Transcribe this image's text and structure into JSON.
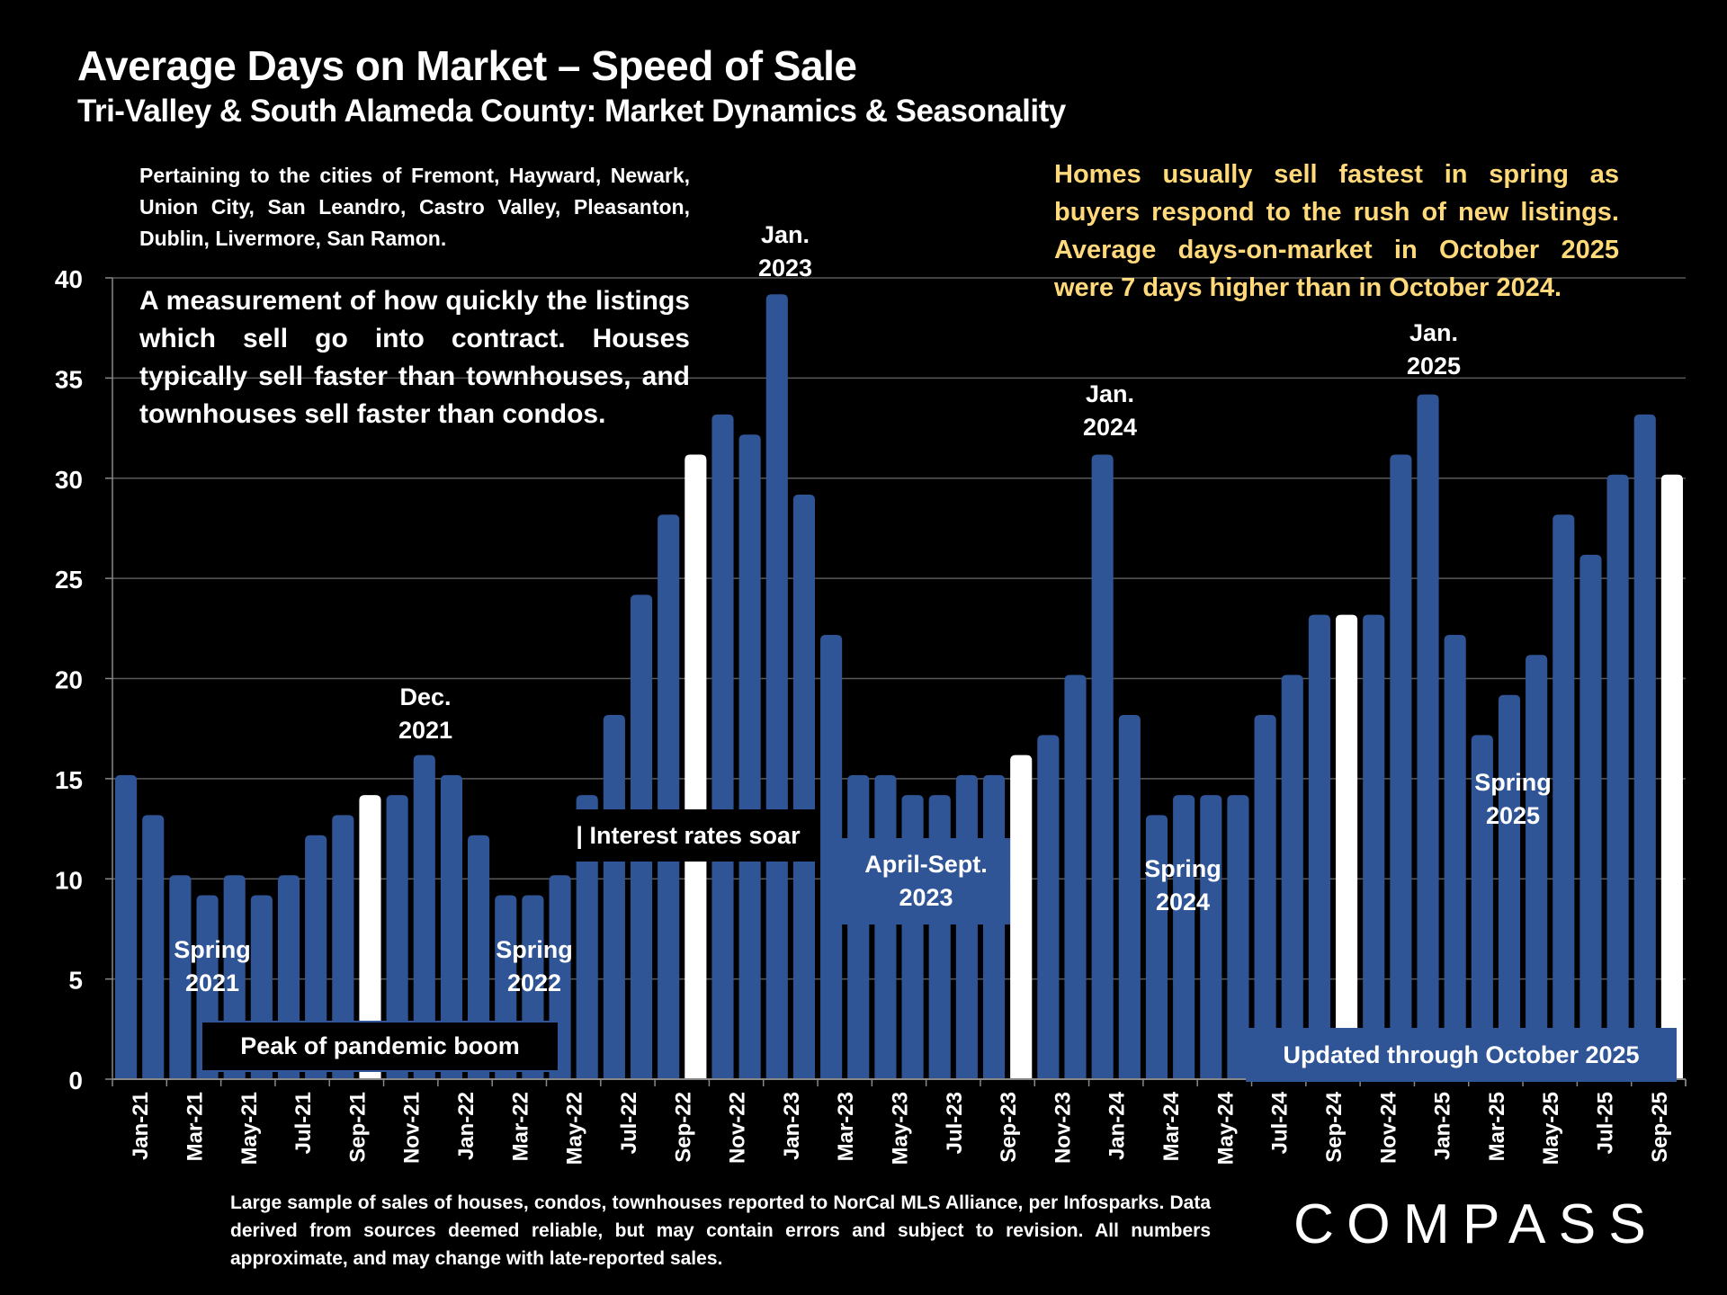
{
  "header": {
    "title": "Average Days on Market – Speed of Sale",
    "subtitle": "Tri-Valley & South Alameda County: Market Dynamics & Seasonality"
  },
  "notes": {
    "cities": "Pertaining to the cities of Fremont, Hayward, Newark, Union City, San Leandro, Castro Valley, Pleasanton, Dublin, Livermore, San Ramon.",
    "measurement": "A measurement of how quickly the listings which sell go into contract. Houses typically sell faster than townhouses, and townhouses sell faster than condos.",
    "insight": "Homes usually sell fastest in spring as buyers respond to the rush of new listings. Average days-on-market in October 2025 were 7 days higher than in October 2024."
  },
  "annotations": {
    "dec2021": [
      "Dec.",
      "2021"
    ],
    "jan2023": [
      "Jan.",
      "2023"
    ],
    "jan2024": [
      "Jan.",
      "2024"
    ],
    "jan2025": [
      "Jan.",
      "2025"
    ],
    "spring2021": [
      "Spring",
      "2021"
    ],
    "spring2022": [
      "Spring",
      "2022"
    ],
    "spring2024": [
      "Spring",
      "2024"
    ],
    "spring2025": [
      "Spring",
      "2025"
    ],
    "peak_box": "Peak of pandemic boom",
    "rates_box": "| Interest rates soar",
    "aprsep_box": [
      "April-Sept.",
      "2023"
    ],
    "updated_box": "Updated through October 2025"
  },
  "footer": {
    "source": "Large sample of sales of houses, condos, townhouses reported to NorCal MLS Alliance, per Infosparks. Data derived from sources deemed reliable, but may contain errors and subject to revision. All numbers approximate, and may change with late-reported sales.",
    "logo": "COMPASS"
  },
  "colors": {
    "bar": "#2F5597",
    "highlight_bar": "#FFFFFF",
    "insight_text": "#FFD97A",
    "grid": "#595959",
    "background": "#000000"
  },
  "chart_data": {
    "type": "bar",
    "title": "Average Days on Market – Speed of Sale",
    "xlabel": "",
    "ylabel": "",
    "ylim": [
      0,
      40
    ],
    "yticks": [
      0,
      5,
      10,
      15,
      20,
      25,
      30,
      35,
      40
    ],
    "grid": true,
    "categories": [
      "Jan-21",
      "Feb-21",
      "Mar-21",
      "Apr-21",
      "May-21",
      "Jun-21",
      "Jul-21",
      "Aug-21",
      "Sep-21",
      "Oct-21",
      "Nov-21",
      "Dec-21",
      "Jan-22",
      "Feb-22",
      "Mar-22",
      "Apr-22",
      "May-22",
      "Jun-22",
      "Jul-22",
      "Aug-22",
      "Sep-22",
      "Oct-22",
      "Nov-22",
      "Dec-22",
      "Jan-23",
      "Feb-23",
      "Mar-23",
      "Apr-23",
      "May-23",
      "Jun-23",
      "Jul-23",
      "Aug-23",
      "Sep-23",
      "Oct-23",
      "Nov-23",
      "Dec-23",
      "Jan-24",
      "Feb-24",
      "Mar-24",
      "Apr-24",
      "May-24",
      "Jun-24",
      "Jul-24",
      "Aug-24",
      "Sep-24",
      "Oct-24",
      "Nov-24",
      "Dec-24",
      "Jan-25",
      "Feb-25",
      "Mar-25",
      "Apr-25",
      "May-25",
      "Jun-25",
      "Jul-25",
      "Aug-25",
      "Sep-25",
      "Oct-25"
    ],
    "values": [
      15,
      13,
      10,
      9,
      10,
      9,
      10,
      12,
      13,
      14,
      14,
      16,
      15,
      12,
      9,
      9,
      10,
      14,
      18,
      24,
      28,
      31,
      33,
      32,
      39,
      29,
      22,
      15,
      15,
      14,
      14,
      15,
      15,
      16,
      17,
      20,
      31,
      18,
      13,
      14,
      14,
      14,
      18,
      20,
      23,
      23,
      23,
      31,
      34,
      22,
      17,
      19,
      21,
      28,
      26,
      30,
      33,
      30
    ],
    "highlighted": [
      "Oct-21",
      "Oct-22",
      "Oct-23",
      "Oct-24",
      "Oct-25"
    ],
    "tick_labels": [
      "Jan-21",
      "Mar-21",
      "May-21",
      "Jul-21",
      "Sep-21",
      "Nov-21",
      "Jan-22",
      "Mar-22",
      "May-22",
      "Jul-22",
      "Sep-22",
      "Nov-22",
      "Jan-23",
      "Mar-23",
      "May-23",
      "Jul-23",
      "Sep-23",
      "Nov-23",
      "Jan-24",
      "Mar-24",
      "May-24",
      "Jul-24",
      "Sep-24",
      "Nov-24",
      "Jan-25",
      "Mar-25",
      "May-25",
      "Jul-25",
      "Sep-25"
    ],
    "legend": "none"
  }
}
